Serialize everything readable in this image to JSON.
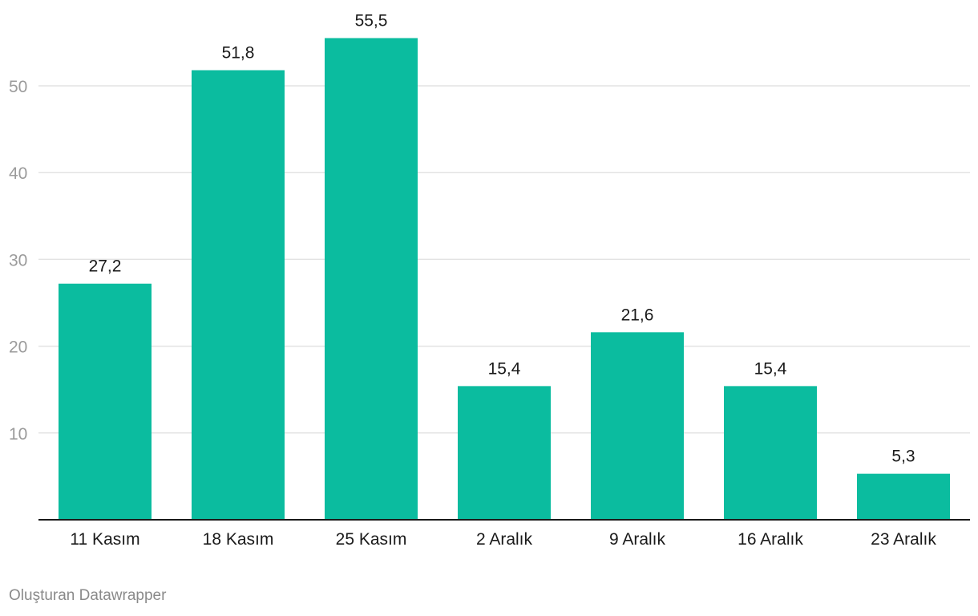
{
  "chart_data": {
    "type": "bar",
    "categories": [
      "11 Kasım",
      "18 Kasım",
      "25 Kasım",
      "2 Aralık",
      "9 Aralık",
      "16 Aralık",
      "23 Aralık"
    ],
    "values": [
      27.2,
      51.8,
      55.5,
      15.4,
      21.6,
      15.4,
      5.3
    ],
    "value_labels": [
      "27,2",
      "51,8",
      "55,5",
      "15,4",
      "21,6",
      "15,4",
      "5,3"
    ],
    "yticks": [
      10,
      20,
      30,
      40,
      50
    ],
    "ytick_labels": [
      "10",
      "20",
      "30",
      "40",
      "50"
    ],
    "ylim": [
      0,
      50
    ],
    "grid": true,
    "bar_color": "#0bbc9f",
    "gridline_color": "#e3e3e3",
    "tick_label_color": "#9b9b9b",
    "title": "",
    "xlabel": "",
    "ylabel": ""
  },
  "footer": {
    "credit": "Oluşturan Datawrapper"
  }
}
